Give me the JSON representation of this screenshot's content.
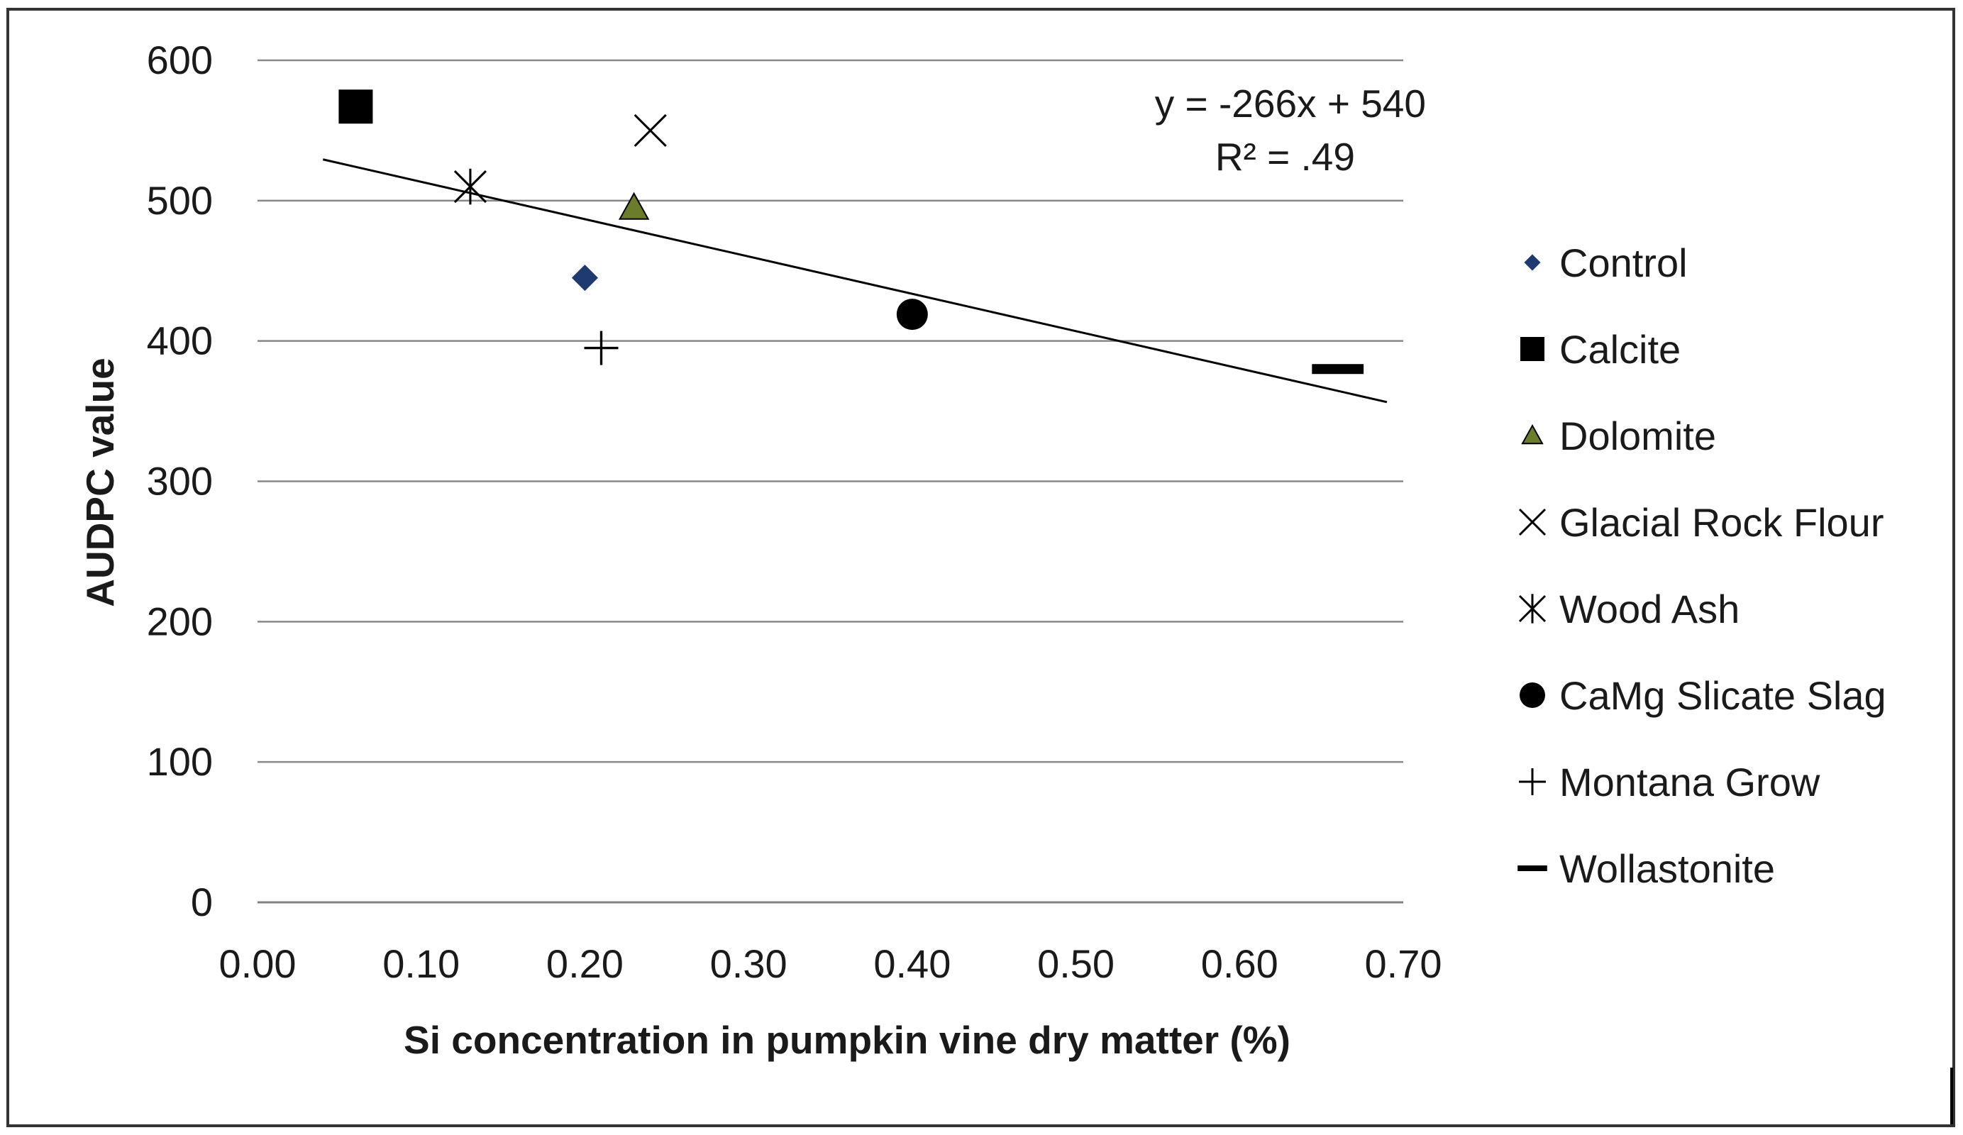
{
  "chart_data": {
    "type": "scatter",
    "title": "",
    "xlabel": "Si concentration in pumpkin vine dry matter (%)",
    "ylabel": "AUDPC value",
    "xlim": [
      0,
      0.7
    ],
    "ylim": [
      0,
      600
    ],
    "x_ticks": [
      "0.00",
      "0.10",
      "0.20",
      "0.30",
      "0.40",
      "0.50",
      "0.60",
      "0.70"
    ],
    "y_ticks": [
      "0",
      "100",
      "200",
      "300",
      "400",
      "500",
      "600"
    ],
    "grid": "horizontal",
    "legend_position": "right",
    "series": [
      {
        "name": "Control",
        "marker": "diamond",
        "color": "#1f3a6e",
        "points": [
          {
            "x": 0.2,
            "y": 445
          }
        ]
      },
      {
        "name": "Calcite",
        "marker": "square",
        "color": "#000000",
        "points": [
          {
            "x": 0.06,
            "y": 567
          }
        ]
      },
      {
        "name": "Dolomite",
        "marker": "triangle",
        "color": "#6b7d2a",
        "points": [
          {
            "x": 0.23,
            "y": 495
          }
        ]
      },
      {
        "name": "Glacial Rock Flour",
        "marker": "x",
        "color": "#000000",
        "points": [
          {
            "x": 0.24,
            "y": 550
          }
        ]
      },
      {
        "name": "Wood Ash",
        "marker": "asterisk",
        "color": "#000000",
        "points": [
          {
            "x": 0.13,
            "y": 510
          }
        ]
      },
      {
        "name": "CaMg Slicate Slag",
        "marker": "circle",
        "color": "#000000",
        "points": [
          {
            "x": 0.4,
            "y": 419
          }
        ]
      },
      {
        "name": "Montana Grow",
        "marker": "plus",
        "color": "#000000",
        "points": [
          {
            "x": 0.21,
            "y": 395
          }
        ]
      },
      {
        "name": "Wollastonite",
        "marker": "dash",
        "color": "#000000",
        "points": [
          {
            "x": 0.66,
            "y": 380
          }
        ]
      }
    ],
    "trendline": {
      "x_range": [
        0.04,
        0.69
      ],
      "slope": -266,
      "intercept": 540,
      "equation": "y = -266x + 540",
      "r_squared": "R² = .49"
    }
  }
}
